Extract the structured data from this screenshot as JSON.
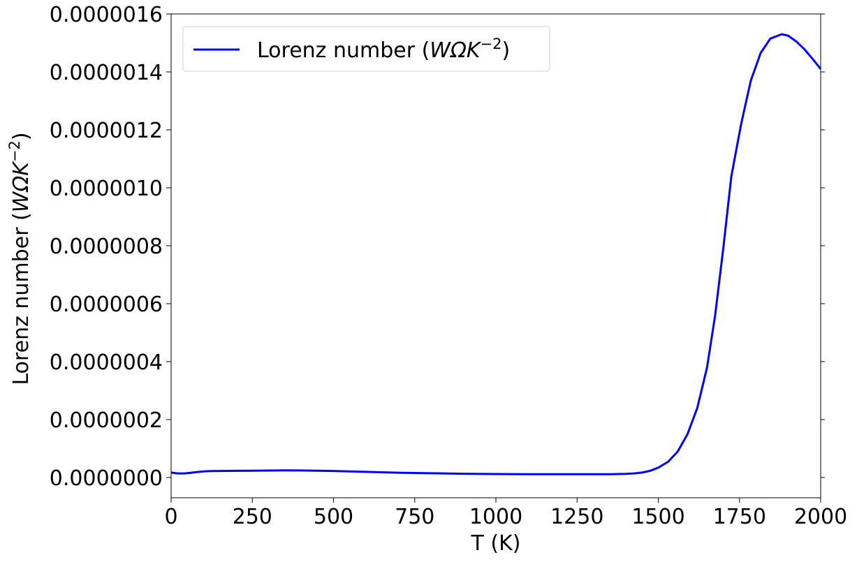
{
  "chart_data": {
    "type": "line",
    "title": "",
    "xlabel": "T (K)",
    "ylabel_main": "Lorenz number (",
    "ylabel_math": "WΩK",
    "ylabel_sup": "−2",
    "ylabel_close": ")",
    "xlim": [
      0,
      2000
    ],
    "ylim": [
      -7e-08,
      1.6e-06
    ],
    "x_ticks": [
      0,
      250,
      500,
      750,
      1000,
      1250,
      1500,
      1750,
      2000
    ],
    "x_tick_labels": [
      "0",
      "250",
      "500",
      "750",
      "1000",
      "1250",
      "1500",
      "1750",
      "2000"
    ],
    "y_ticks": [
      0,
      2e-07,
      4e-07,
      6e-07,
      8e-07,
      1e-06,
      1.2e-06,
      1.4e-06,
      1.6e-06
    ],
    "y_tick_labels": [
      "0.0000000",
      "0.0000002",
      "0.0000004",
      "0.0000006",
      "0.0000008",
      "0.0000010",
      "0.0000012",
      "0.0000014",
      "0.0000016"
    ],
    "grid": false,
    "legend_position": "upper-left",
    "series": [
      {
        "name_main": "Lorenz number (",
        "name_math": "WΩK",
        "name_sup": "−2",
        "name_close": ")",
        "color": "#0000ff",
        "x": [
          0,
          20,
          40,
          60,
          80,
          100,
          120,
          150,
          200,
          250,
          300,
          350,
          400,
          450,
          500,
          600,
          700,
          800,
          900,
          1000,
          1100,
          1200,
          1300,
          1350,
          1400,
          1425,
          1450,
          1475,
          1500,
          1530,
          1560,
          1590,
          1620,
          1650,
          1675,
          1700,
          1725,
          1755,
          1785,
          1815,
          1845,
          1880,
          1900,
          1925,
          1950,
          1975,
          2000
        ],
        "y": [
          1.7e-08,
          1.4e-08,
          1.4e-08,
          1.6e-08,
          1.9e-08,
          2.1e-08,
          2.2e-08,
          2.25e-08,
          2.3e-08,
          2.35e-08,
          2.4e-08,
          2.45e-08,
          2.43e-08,
          2.35e-08,
          2.25e-08,
          1.95e-08,
          1.65e-08,
          1.45e-08,
          1.3e-08,
          1.2e-08,
          1.15e-08,
          1.12e-08,
          1.12e-08,
          1.15e-08,
          1.25e-08,
          1.4e-08,
          1.7e-08,
          2.3e-08,
          3.4e-08,
          5.4e-08,
          9e-08,
          1.5e-07,
          2.4e-07,
          3.8e-07,
          5.6e-07,
          7.9e-07,
          1.04e-06,
          1.22e-06,
          1.37e-06,
          1.465e-06,
          1.515e-06,
          1.53e-06,
          1.525e-06,
          1.505e-06,
          1.478e-06,
          1.445e-06,
          1.41e-06
        ]
      }
    ]
  }
}
